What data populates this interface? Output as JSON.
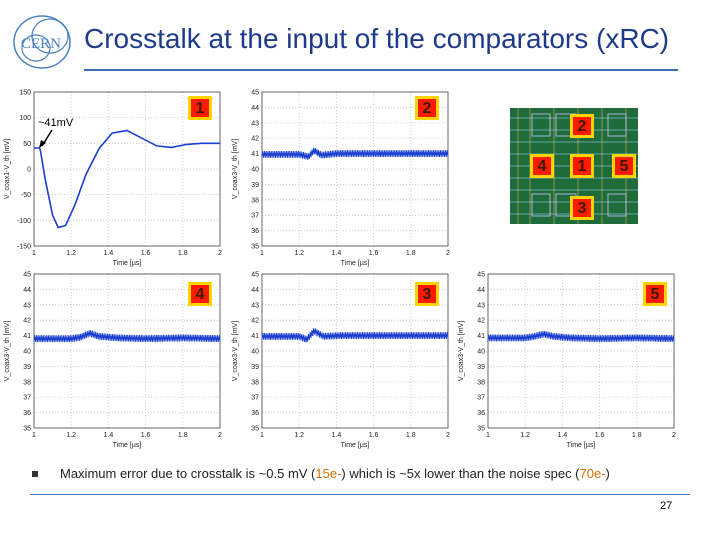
{
  "slide": {
    "title": "Crosstalk at the input of the comparators (xRC)",
    "logo_text": "CERN",
    "annotation": "~41mV",
    "footer": {
      "parts": [
        {
          "text": "Maximum error due to crosstalk is ~0.5 mV (",
          "hl": false
        },
        {
          "text": "15e-",
          "hl": true
        },
        {
          "text": ") which is ~5x lower than the noise spec (",
          "hl": false
        },
        {
          "text": "70e-",
          "hl": true
        },
        {
          "text": ")",
          "hl": false
        }
      ]
    },
    "page_number": "27",
    "colors": {
      "title": "#1e3a8a",
      "trace": "#1a3fd0",
      "badge": "#ff1a00",
      "badge_border": "#ffd400",
      "highlight": "#d97000"
    }
  },
  "chip_labels": [
    "2",
    "4",
    "1",
    "5",
    "3"
  ],
  "chart_data": [
    {
      "type": "line",
      "badge": "1",
      "xlabel": "Time [µs]",
      "ylabel": "V_coax1-V_th [mV]",
      "xlim": [
        1,
        2
      ],
      "ylim": [
        -150,
        150
      ],
      "xticks": [
        "1",
        "1.2",
        "1.4",
        "1.6",
        "1.8",
        "2"
      ],
      "yticks": [
        "150",
        "100",
        "50",
        "0",
        "-50",
        "-100",
        "-150"
      ],
      "series": [
        {
          "x": [
            1.0,
            1.03,
            1.035,
            1.06,
            1.1,
            1.13,
            1.17,
            1.22,
            1.28,
            1.35,
            1.42,
            1.5,
            1.58,
            1.66,
            1.74,
            1.82,
            1.9,
            2.0
          ],
          "y": [
            41,
            41,
            35,
            -20,
            -90,
            -114,
            -110,
            -70,
            -10,
            40,
            70,
            75,
            60,
            45,
            42,
            48,
            50,
            50
          ]
        }
      ]
    },
    {
      "type": "line",
      "badge": "2",
      "xlabel": "Time [µs]",
      "ylabel": "V_coax3-V_th [mV]",
      "xlim": [
        1,
        2
      ],
      "ylim": [
        35,
        45
      ],
      "xticks": [
        "1",
        "1.2",
        "1.4",
        "1.6",
        "1.8",
        "2"
      ],
      "yticks": [
        "45",
        "44",
        "43",
        "42",
        "41",
        "40",
        "39",
        "38",
        "37",
        "36",
        "35"
      ],
      "series": [
        {
          "x": [
            1.0,
            1.2,
            1.25,
            1.28,
            1.32,
            1.4,
            1.6,
            1.8,
            2.0
          ],
          "y": [
            40.95,
            40.95,
            40.8,
            41.2,
            40.9,
            41.0,
            41.0,
            41.0,
            41.0
          ]
        }
      ]
    },
    {
      "type": "line",
      "badge": "4",
      "xlabel": "Time [µs]",
      "ylabel": "V_coax3-V_th [mV]",
      "xlim": [
        1,
        2
      ],
      "ylim": [
        35,
        45
      ],
      "xticks": [
        "1",
        "1.2",
        "1.4",
        "1.6",
        "1.8",
        "2"
      ],
      "yticks": [
        "45",
        "44",
        "43",
        "42",
        "41",
        "40",
        "39",
        "38",
        "37",
        "36",
        "35"
      ],
      "series": [
        {
          "x": [
            1.0,
            1.2,
            1.25,
            1.3,
            1.35,
            1.45,
            1.6,
            1.8,
            2.0
          ],
          "y": [
            40.8,
            40.8,
            40.9,
            41.15,
            40.95,
            40.85,
            40.8,
            40.85,
            40.8
          ]
        }
      ]
    },
    {
      "type": "line",
      "badge": "3",
      "xlabel": "Time [µs]",
      "ylabel": "V_coax3-V_th [mV]",
      "xlim": [
        1,
        2
      ],
      "ylim": [
        35,
        45
      ],
      "xticks": [
        "1",
        "1.2",
        "1.4",
        "1.6",
        "1.8",
        "2"
      ],
      "yticks": [
        "45",
        "44",
        "43",
        "42",
        "41",
        "40",
        "39",
        "38",
        "37",
        "36",
        "35"
      ],
      "series": [
        {
          "x": [
            1.0,
            1.2,
            1.24,
            1.28,
            1.33,
            1.42,
            1.6,
            1.8,
            2.0
          ],
          "y": [
            40.95,
            40.95,
            40.75,
            41.3,
            40.95,
            41.0,
            41.0,
            41.0,
            41.0
          ]
        }
      ]
    },
    {
      "type": "line",
      "badge": "5",
      "xlabel": "Time [µs]",
      "ylabel": "V_coax3-V_th [mV]",
      "xlim": [
        1,
        2
      ],
      "ylim": [
        35,
        45
      ],
      "xticks": [
        "1",
        "1.2",
        "1.4",
        "1.6",
        "1.8",
        "2"
      ],
      "yticks": [
        "45",
        "44",
        "43",
        "42",
        "41",
        "40",
        "39",
        "38",
        "37",
        "36",
        "35"
      ],
      "series": [
        {
          "x": [
            1.0,
            1.2,
            1.25,
            1.3,
            1.35,
            1.45,
            1.6,
            1.8,
            2.0
          ],
          "y": [
            40.85,
            40.85,
            40.95,
            41.1,
            40.95,
            40.85,
            40.8,
            40.85,
            40.8
          ]
        }
      ]
    }
  ]
}
